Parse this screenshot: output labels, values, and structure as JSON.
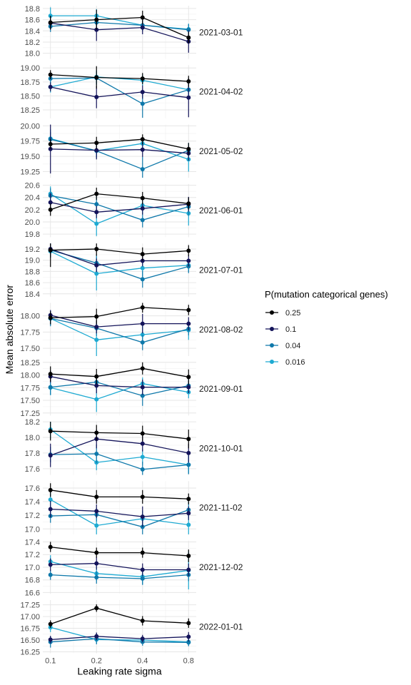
{
  "chart_data": {
    "type": "line",
    "xlabel": "Leaking rate sigma",
    "ylabel": "Mean absolute error",
    "x": [
      0.1,
      0.2,
      0.4,
      0.8
    ],
    "x_tick_labels": [
      "0.1",
      "0.2",
      "0.4",
      "0.8"
    ],
    "x_scale": "log",
    "legend": {
      "title": "P(mutation categorical genes)",
      "position": "right",
      "entries": [
        {
          "name": "0.25",
          "color": "#000000"
        },
        {
          "name": "0.1",
          "color": "#14145a"
        },
        {
          "name": "0.04",
          "color": "#0e78aa"
        },
        {
          "name": "0.016",
          "color": "#1eaad2"
        }
      ]
    },
    "panels": [
      {
        "label": "2021-03-01",
        "ylim": [
          17.9,
          18.85
        ],
        "yticks": [
          18.0,
          18.2,
          18.4,
          18.6,
          18.8
        ],
        "ytick_labels": [
          "18.0",
          "18.2",
          "18.4",
          "18.6",
          "18.8"
        ],
        "series": [
          {
            "name": "0.25",
            "values": [
              18.55,
              18.6,
              18.64,
              18.28
            ],
            "errors": [
              0.12,
              0.18,
              0.12,
              0.1
            ]
          },
          {
            "name": "0.1",
            "values": [
              18.54,
              18.42,
              18.46,
              18.21
            ],
            "errors": [
              0.12,
              0.2,
              0.12,
              0.2
            ]
          },
          {
            "name": "0.04",
            "values": [
              18.48,
              18.55,
              18.5,
              18.42
            ],
            "errors": [
              0.1,
              0.12,
              0.1,
              0.1
            ]
          },
          {
            "name": "0.016",
            "values": [
              18.67,
              18.67,
              18.5,
              18.43
            ],
            "errors": [
              0.15,
              0.12,
              0.1,
              0.1
            ]
          }
        ]
      },
      {
        "label": "2021-04-02",
        "ylim": [
          18.1,
          19.05
        ],
        "yticks": [
          18.25,
          18.5,
          18.75,
          19.0
        ],
        "ytick_labels": [
          "18.25",
          "18.50",
          "18.75",
          "19.00"
        ],
        "series": [
          {
            "name": "0.25",
            "values": [
              18.88,
              18.83,
              18.81,
              18.76
            ],
            "errors": [
              0.08,
              0.2,
              0.1,
              0.1
            ]
          },
          {
            "name": "0.1",
            "values": [
              18.66,
              18.48,
              18.57,
              18.47
            ],
            "errors": [
              0.08,
              0.2,
              0.12,
              0.35
            ]
          },
          {
            "name": "0.04",
            "values": [
              18.81,
              18.82,
              18.36,
              18.61
            ],
            "errors": [
              0.08,
              0.12,
              0.25,
              0.1
            ]
          },
          {
            "name": "0.016",
            "values": [
              18.66,
              18.84,
              18.78,
              18.61
            ],
            "errors": [
              0.1,
              0.12,
              0.1,
              0.12
            ]
          }
        ]
      },
      {
        "label": "2021-05-02",
        "ylim": [
          19.15,
          20.02
        ],
        "yticks": [
          19.25,
          19.5,
          19.75,
          20.0
        ],
        "ytick_labels": [
          "19.25",
          "19.50",
          "19.75",
          "20.00"
        ],
        "series": [
          {
            "name": "0.25",
            "values": [
              19.7,
              19.72,
              19.78,
              19.62
            ],
            "errors": [
              0.08,
              0.1,
              0.08,
              0.1
            ]
          },
          {
            "name": "0.1",
            "values": [
              19.62,
              19.6,
              19.61,
              19.55
            ],
            "errors": [
              0.4,
              0.15,
              0.12,
              0.12
            ]
          },
          {
            "name": "0.04",
            "values": [
              19.78,
              19.59,
              19.29,
              19.6
            ],
            "errors": [
              0.12,
              0.12,
              0.2,
              0.12
            ]
          },
          {
            "name": "0.016",
            "values": [
              19.79,
              19.59,
              19.71,
              19.45
            ],
            "errors": [
              0.15,
              0.1,
              0.1,
              0.2
            ]
          }
        ]
      },
      {
        "label": "2021-06-01",
        "ylim": [
          19.75,
          20.62
        ],
        "yticks": [
          19.8,
          20.0,
          20.2,
          20.4,
          20.6
        ],
        "ytick_labels": [
          "19.8",
          "20.0",
          "20.2",
          "20.4",
          "20.6"
        ],
        "series": [
          {
            "name": "0.25",
            "values": [
              20.2,
              20.46,
              20.39,
              20.3
            ],
            "errors": [
              0.1,
              0.1,
              0.1,
              0.1
            ]
          },
          {
            "name": "0.1",
            "values": [
              20.32,
              20.16,
              20.22,
              20.29
            ],
            "errors": [
              0.15,
              0.1,
              0.1,
              0.12
            ]
          },
          {
            "name": "0.04",
            "values": [
              20.43,
              20.29,
              20.03,
              20.25
            ],
            "errors": [
              0.12,
              0.15,
              0.12,
              0.15
            ]
          },
          {
            "name": "0.016",
            "values": [
              20.46,
              19.97,
              20.27,
              20.14
            ],
            "errors": [
              0.12,
              0.2,
              0.12,
              0.2
            ]
          }
        ]
      },
      {
        "label": "2021-07-01",
        "ylim": [
          18.35,
          19.3
        ],
        "yticks": [
          18.4,
          18.6,
          18.8,
          19.0,
          19.2
        ],
        "ytick_labels": [
          "18.4",
          "18.6",
          "18.8",
          "19.0",
          "19.2"
        ],
        "series": [
          {
            "name": "0.25",
            "values": [
              19.18,
              19.2,
              19.11,
              19.17
            ],
            "errors": [
              0.3,
              0.12,
              0.12,
              0.1
            ]
          },
          {
            "name": "0.1",
            "values": [
              19.2,
              18.91,
              18.99,
              18.99
            ],
            "errors": [
              0.15,
              0.12,
              0.1,
              0.1
            ]
          },
          {
            "name": "0.04",
            "values": [
              19.18,
              18.95,
              18.66,
              18.89
            ],
            "errors": [
              0.12,
              0.15,
              0.15,
              0.12
            ]
          },
          {
            "name": "0.016",
            "values": [
              19.16,
              18.76,
              18.86,
              18.91
            ],
            "errors": [
              0.12,
              0.3,
              0.15,
              0.12
            ]
          }
        ]
      },
      {
        "label": "2021-08-02",
        "ylim": [
          17.38,
          18.2
        ],
        "yticks": [
          17.5,
          17.75,
          18.0
        ],
        "ytick_labels": [
          "17.50",
          "17.75",
          "18.00"
        ],
        "series": [
          {
            "name": "0.25",
            "values": [
              17.97,
              17.99,
              18.13,
              18.09
            ],
            "errors": [
              0.1,
              0.12,
              0.08,
              0.08
            ]
          },
          {
            "name": "0.1",
            "values": [
              18.01,
              17.83,
              17.88,
              17.88
            ],
            "errors": [
              0.08,
              0.1,
              0.15,
              0.1
            ]
          },
          {
            "name": "0.04",
            "values": [
              17.96,
              17.81,
              17.59,
              17.8
            ],
            "errors": [
              0.12,
              0.12,
              0.12,
              0.1
            ]
          },
          {
            "name": "0.016",
            "values": [
              17.96,
              17.63,
              17.71,
              17.78
            ],
            "errors": [
              0.1,
              0.25,
              0.15,
              0.15
            ]
          }
        ]
      },
      {
        "label": "2021-09-01",
        "ylim": [
          17.2,
          18.25
        ],
        "yticks": [
          17.25,
          17.5,
          17.75,
          18.0,
          18.25
        ],
        "ytick_labels": [
          "17.25",
          "17.50",
          "17.75",
          "18.00",
          "18.25"
        ],
        "series": [
          {
            "name": "0.25",
            "values": [
              18.02,
              17.97,
              18.13,
              17.96
            ],
            "errors": [
              0.15,
              0.15,
              0.12,
              0.15
            ]
          },
          {
            "name": "0.1",
            "values": [
              17.97,
              17.79,
              17.76,
              17.76
            ],
            "errors": [
              0.12,
              0.15,
              0.15,
              0.12
            ]
          },
          {
            "name": "0.04",
            "values": [
              17.76,
              17.86,
              17.59,
              17.79
            ],
            "errors": [
              0.15,
              0.15,
              0.2,
              0.15
            ]
          },
          {
            "name": "0.016",
            "values": [
              17.75,
              17.52,
              17.83,
              17.66
            ],
            "errors": [
              0.15,
              0.25,
              0.12,
              0.12
            ]
          }
        ]
      },
      {
        "label": "2021-10-01",
        "ylim": [
          17.52,
          18.2
        ],
        "yticks": [
          17.6,
          17.8,
          18.0,
          18.2
        ],
        "ytick_labels": [
          "17.6",
          "17.8",
          "18.0",
          "18.2"
        ],
        "series": [
          {
            "name": "0.25",
            "values": [
              18.08,
              18.06,
              18.05,
              17.98
            ],
            "errors": [
              0.12,
              0.1,
              0.1,
              0.12
            ]
          },
          {
            "name": "0.1",
            "values": [
              17.77,
              17.98,
              17.92,
              17.8
            ],
            "errors": [
              0.15,
              0.12,
              0.1,
              0.12
            ]
          },
          {
            "name": "0.04",
            "values": [
              17.78,
              17.79,
              17.59,
              17.65
            ],
            "errors": [
              0.1,
              0.12,
              0.1,
              0.12
            ]
          },
          {
            "name": "0.016",
            "values": [
              18.1,
              17.68,
              17.75,
              17.65
            ],
            "errors": [
              0.12,
              0.1,
              0.1,
              0.12
            ]
          }
        ]
      },
      {
        "label": "2021-11-02",
        "ylim": [
          16.92,
          17.7
        ],
        "yticks": [
          17.0,
          17.2,
          17.4,
          17.6
        ],
        "ytick_labels": [
          "17.0",
          "17.2",
          "17.4",
          "17.6"
        ],
        "series": [
          {
            "name": "0.25",
            "values": [
              17.57,
              17.47,
              17.47,
              17.44
            ],
            "errors": [
              0.1,
              0.1,
              0.1,
              0.08
            ]
          },
          {
            "name": "0.1",
            "values": [
              17.29,
              17.26,
              17.18,
              17.23
            ],
            "errors": [
              0.12,
              0.1,
              0.15,
              0.1
            ]
          },
          {
            "name": "0.04",
            "values": [
              17.19,
              17.21,
              17.03,
              17.28
            ],
            "errors": [
              0.1,
              0.1,
              0.15,
              0.12
            ]
          },
          {
            "name": "0.016",
            "values": [
              17.43,
              17.05,
              17.15,
              17.06
            ],
            "errors": [
              0.12,
              0.15,
              0.12,
              0.15
            ]
          }
        ]
      },
      {
        "label": "2021-12-02",
        "ylim": [
          16.58,
          17.42
        ],
        "yticks": [
          16.6,
          16.8,
          17.0,
          17.2,
          17.4
        ],
        "ytick_labels": [
          "16.6",
          "16.8",
          "17.0",
          "17.2",
          "17.4"
        ],
        "series": [
          {
            "name": "0.25",
            "values": [
              17.32,
              17.23,
              17.23,
              17.18
            ],
            "errors": [
              0.08,
              0.08,
              0.08,
              0.1
            ]
          },
          {
            "name": "0.1",
            "values": [
              17.04,
              17.06,
              16.96,
              16.96
            ],
            "errors": [
              0.1,
              0.1,
              0.1,
              0.1
            ]
          },
          {
            "name": "0.04",
            "values": [
              16.88,
              16.84,
              16.82,
              16.88
            ],
            "errors": [
              0.08,
              0.1,
              0.1,
              0.1
            ]
          },
          {
            "name": "0.016",
            "values": [
              17.09,
              16.9,
              16.85,
              16.95
            ],
            "errors": [
              0.1,
              0.12,
              0.12,
              0.3
            ]
          }
        ]
      },
      {
        "label": "2022-01-01",
        "ylim": [
          16.22,
          17.35
        ],
        "yticks": [
          16.25,
          16.5,
          16.75,
          17.0,
          17.25
        ],
        "ytick_labels": [
          "16.25",
          "16.50",
          "16.75",
          "17.00",
          "17.25"
        ],
        "series": [
          {
            "name": "0.25",
            "values": [
              16.84,
              17.18,
              16.91,
              16.86
            ],
            "errors": [
              0.08,
              0.08,
              0.1,
              0.1
            ]
          },
          {
            "name": "0.1",
            "values": [
              16.51,
              16.58,
              16.53,
              16.57
            ],
            "errors": [
              0.08,
              0.08,
              0.08,
              0.1
            ]
          },
          {
            "name": "0.04",
            "values": [
              16.46,
              16.53,
              16.46,
              16.45
            ],
            "errors": [
              0.12,
              0.12,
              0.08,
              0.08
            ]
          },
          {
            "name": "0.016",
            "values": [
              16.77,
              16.51,
              16.5,
              16.46
            ],
            "errors": [
              0.1,
              0.08,
              0.08,
              0.08
            ]
          }
        ]
      }
    ]
  }
}
